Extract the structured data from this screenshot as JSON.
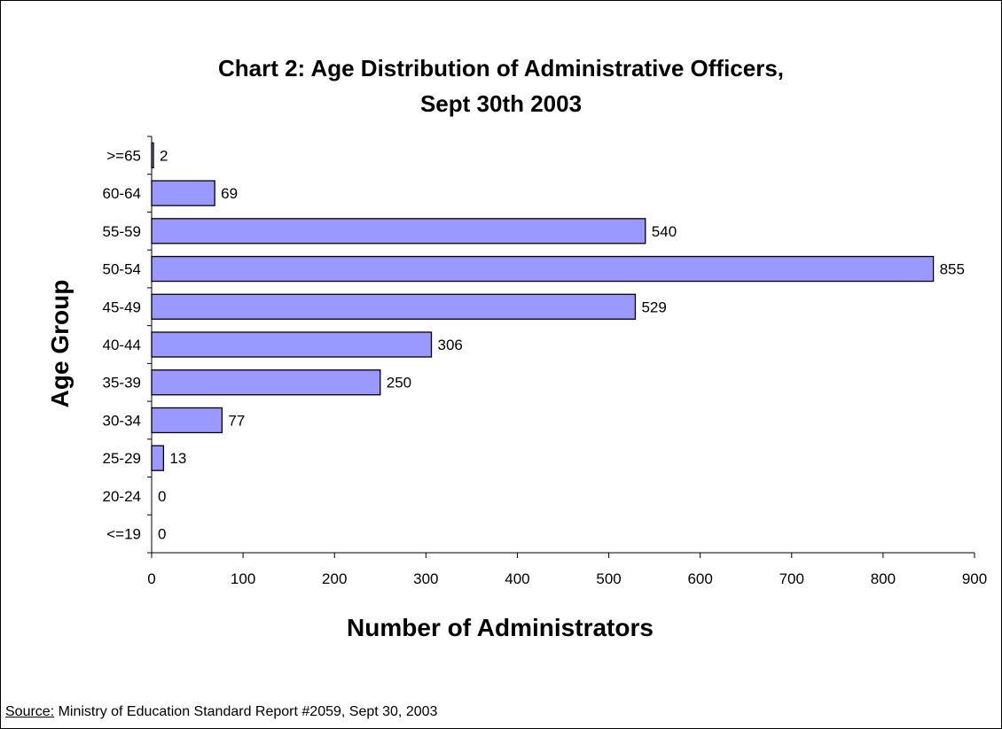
{
  "chart_data": {
    "type": "bar",
    "orientation": "horizontal",
    "title_line1": "Chart 2: Age Distribution of Administrative Officers,",
    "title_line2": "Sept 30th 2003",
    "xlabel": "Number of Administrators",
    "ylabel": "Age Group",
    "categories": [
      "<=19",
      "20-24",
      "25-29",
      "30-34",
      "35-39",
      "40-44",
      "45-49",
      "50-54",
      "55-59",
      "60-64",
      ">=65"
    ],
    "values": [
      0,
      0,
      13,
      77,
      250,
      306,
      529,
      855,
      540,
      69,
      2
    ],
    "xlim": [
      0,
      900
    ],
    "xticks": [
      0,
      100,
      200,
      300,
      400,
      500,
      600,
      700,
      800,
      900
    ],
    "grid": false,
    "legend": "none",
    "bar_color": "#9999ff",
    "bar_border_color": "#000000"
  },
  "source": {
    "label": "Source:",
    "text": " Ministry of Education Standard Report #2059, Sept 30, 2003"
  }
}
